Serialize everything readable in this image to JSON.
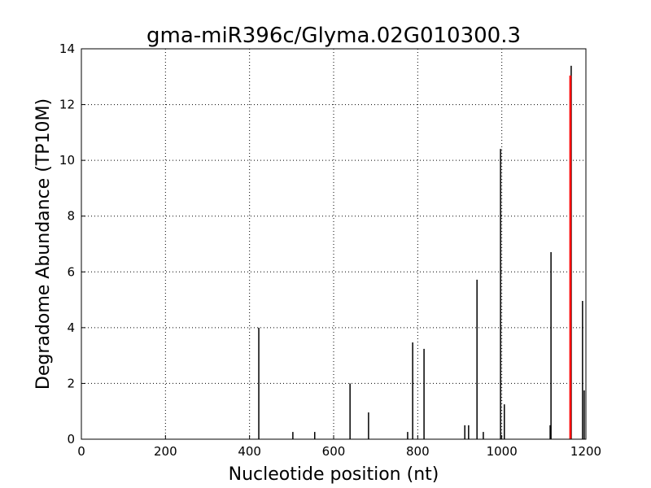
{
  "chart_data": {
    "type": "stem",
    "title": "gma-miR396c/Glyma.02G010300.3",
    "x_label": "Nucleotide position (nt)",
    "y_label": "Degradome Abundance (TP10M)",
    "xlim": [
      0,
      1200
    ],
    "xticks": [
      0,
      200,
      400,
      600,
      800,
      1000,
      1200
    ],
    "ylim": [
      0,
      14
    ],
    "yticks": [
      0,
      2,
      4,
      6,
      8,
      10,
      12,
      14
    ],
    "grid": true,
    "series": [
      {
        "color": "#000000",
        "x": [
          422,
          503,
          555,
          639,
          683,
          776,
          788,
          815,
          912,
          921,
          941,
          956,
          997,
          1006,
          1115,
          1117,
          1165,
          1192,
          1196
        ],
        "values": [
          4.0,
          0.26,
          0.26,
          2.0,
          0.96,
          0.26,
          3.47,
          3.24,
          0.5,
          0.5,
          5.72,
          0.26,
          10.41,
          1.25,
          0.5,
          6.71,
          13.39,
          4.96,
          1.75
        ]
      },
      {
        "color": "#ff0000",
        "x": [
          1163
        ],
        "values": [
          13.04
        ]
      }
    ]
  }
}
